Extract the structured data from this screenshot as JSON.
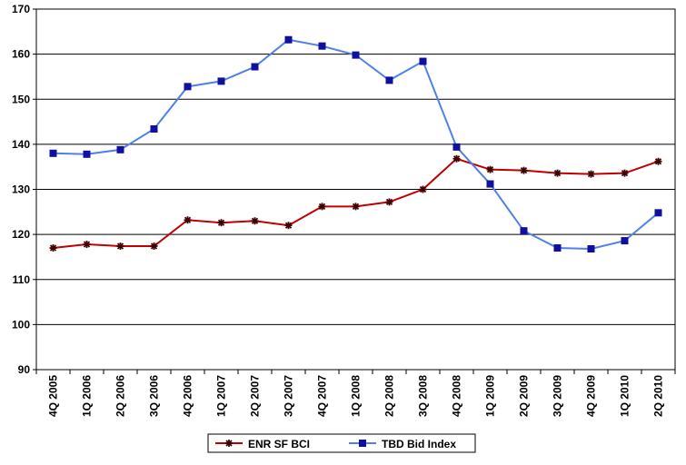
{
  "chart_data": {
    "type": "line",
    "title": "",
    "xlabel": "",
    "ylabel": "",
    "categories": [
      "4Q 2005",
      "1Q 2006",
      "2Q 2006",
      "3Q 2006",
      "4Q 2006",
      "1Q 2007",
      "2Q 2007",
      "3Q 2007",
      "4Q 2007",
      "1Q 2008",
      "2Q 2008",
      "3Q 2008",
      "4Q 2008",
      "1Q 2009",
      "2Q 2009",
      "3Q 2009",
      "4Q 2009",
      "1Q 2010",
      "2Q 2010"
    ],
    "ylim": [
      90,
      170
    ],
    "yticks": [
      "90",
      "100",
      "110",
      "120",
      "130",
      "140",
      "150",
      "160",
      "170"
    ],
    "grid": true,
    "legend_position": "bottom",
    "series": [
      {
        "name": "ENR SF BCI",
        "color": "#c00000",
        "marker": "star",
        "values": [
          117.0,
          117.8,
          117.4,
          117.4,
          123.2,
          122.6,
          123.0,
          122.0,
          126.2,
          126.2,
          127.2,
          130.0,
          136.8,
          134.4,
          134.2,
          133.6,
          133.4,
          133.6,
          136.2
        ]
      },
      {
        "name": "TBD Bid Index",
        "color": "#4f81e8",
        "marker": "square",
        "values": [
          138.0,
          137.8,
          138.8,
          143.4,
          152.8,
          154.0,
          157.2,
          163.2,
          161.8,
          159.8,
          154.2,
          158.4,
          139.4,
          131.2,
          120.8,
          117.0,
          116.8,
          118.6,
          124.8
        ]
      }
    ]
  }
}
